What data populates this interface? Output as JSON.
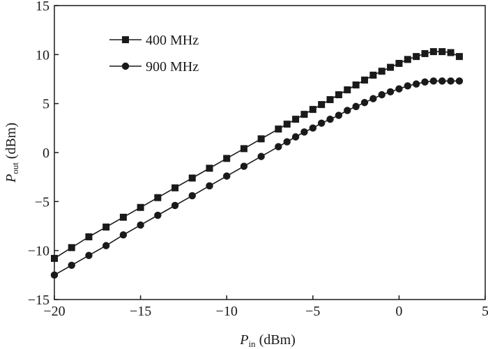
{
  "chart_data": {
    "type": "line",
    "xlim": [
      -20,
      5
    ],
    "ylim": [
      -15,
      15
    ],
    "xticks": [
      -20,
      -15,
      -10,
      -5,
      0,
      5
    ],
    "yticks": [
      -15,
      -10,
      -5,
      0,
      5,
      10,
      15
    ],
    "xtick_labels": [
      "−20",
      "−15",
      "−10",
      "−5",
      "0",
      "5"
    ],
    "ytick_labels": [
      "−15",
      "−10",
      "−5",
      "0",
      "5",
      "10",
      "15"
    ],
    "xlabel": {
      "main": "P",
      "sub": "in",
      "unit": " (dBm)"
    },
    "ylabel": {
      "main": "P",
      "sub": "out",
      "unit": " (dBm)"
    },
    "grid": false,
    "legend_position": "top-left",
    "series": [
      {
        "name": "400 MHz",
        "marker": "square",
        "x": [
          -20,
          -19,
          -18,
          -17,
          -16,
          -15,
          -14,
          -13,
          -12,
          -11,
          -10,
          -9,
          -8,
          -7,
          -6.5,
          -6,
          -5.5,
          -5,
          -4.5,
          -4,
          -3.5,
          -3,
          -2.5,
          -2,
          -1.5,
          -1,
          -0.5,
          0,
          0.5,
          1,
          1.5,
          2,
          2.5,
          3,
          3.5
        ],
        "y": [
          -10.8,
          -9.7,
          -8.6,
          -7.6,
          -6.6,
          -5.6,
          -4.6,
          -3.6,
          -2.6,
          -1.6,
          -0.6,
          0.4,
          1.4,
          2.4,
          2.9,
          3.4,
          3.9,
          4.4,
          4.9,
          5.4,
          5.9,
          6.4,
          6.9,
          7.4,
          7.9,
          8.3,
          8.7,
          9.1,
          9.5,
          9.8,
          10.1,
          10.3,
          10.3,
          10.2,
          9.8
        ]
      },
      {
        "name": "900 MHz",
        "marker": "circle",
        "x": [
          -20,
          -19,
          -18,
          -17,
          -16,
          -15,
          -14,
          -13,
          -12,
          -11,
          -10,
          -9,
          -8,
          -7,
          -6.5,
          -6,
          -5.5,
          -5,
          -4.5,
          -4,
          -3.5,
          -3,
          -2.5,
          -2,
          -1.5,
          -1,
          -0.5,
          0,
          0.5,
          1,
          1.5,
          2,
          2.5,
          3,
          3.5
        ],
        "y": [
          -12.5,
          -11.5,
          -10.5,
          -9.5,
          -8.4,
          -7.4,
          -6.4,
          -5.4,
          -4.4,
          -3.4,
          -2.4,
          -1.4,
          -0.4,
          0.6,
          1.1,
          1.6,
          2.1,
          2.5,
          3.0,
          3.4,
          3.8,
          4.3,
          4.7,
          5.1,
          5.5,
          5.9,
          6.2,
          6.5,
          6.8,
          7.0,
          7.2,
          7.3,
          7.3,
          7.3,
          7.3
        ]
      }
    ]
  }
}
